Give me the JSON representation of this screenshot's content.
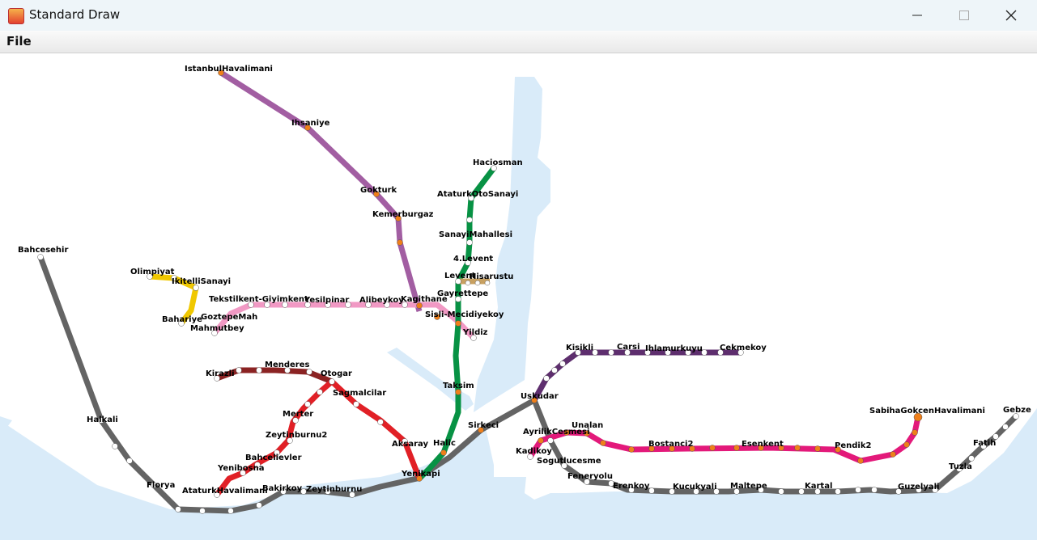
{
  "window": {
    "title": "Standard Draw",
    "minimize_icon": "minimize-icon",
    "maximize_icon": "maximize-icon",
    "close_icon": "close-icon"
  },
  "menu": {
    "file": "File"
  },
  "colors": {
    "water": "#d9ebf9",
    "land": "#ffffff",
    "marmaray": "#646464",
    "m1": "#8b2323",
    "m1a": "#e12026",
    "m2": "#079244",
    "m3": "#f0c800",
    "m4": "#e3197a",
    "m5": "#5e2e6e",
    "m7": "#f199c4",
    "m11": "#a25ea2",
    "funicular": "#c8a060",
    "station_orange": "#ef7f1a",
    "station_white": "#ffffff"
  },
  "stations": {
    "istanbul_havalimani": "IstanbulHavalimani",
    "ihsaniye": "Ihsaniye",
    "gokturk": "Gokturk",
    "kemerburgaz": "Kemerburgaz",
    "haciosman": "Haciosman",
    "ataturk_oto_sanayi": "AtaturkOtoSanayi",
    "sanayi_mahallesi": "SanayiMahallesi",
    "levent4": "4.Levent",
    "levent": "Levent",
    "hisarustu": "Hisarustu",
    "gayrettepe": "Gayrettepe",
    "kagithane": "Kagithane",
    "sisli_mecidiyekoy": "Sisli-Mecidiyekoy",
    "yildiz": "Yildiz",
    "bahcesehir": "Bahcesehir",
    "olimpiyat": "Olimpiyat",
    "ikitelli_sanayi": "IkitelliSanayi",
    "tekstilkent": "Tekstilkent-Giyimkent",
    "yesilpinar": "Yesilpinar",
    "alibeykoy": "Alibeykoy",
    "goztepe_mah": "GoztepeMah",
    "bahariye": "Bahariye",
    "mahmutbey": "Mahmutbey",
    "kirazli": "Kirazli",
    "menderes": "Menderes",
    "otogar": "Otogar",
    "sagmalcilar": "Sagmalcilar",
    "merter": "Merter",
    "zeytinburnu2": "Zeytinburnu2",
    "bahcelievler": "Bahcelievler",
    "yenibosna": "Yenibosna",
    "ataturk_havalimani": "AtaturkHavalimani",
    "taksim": "Taksim",
    "aksaray": "Aksaray",
    "halic": "Halic",
    "yenikapi": "Yenikapi",
    "sirkeci": "Sirkeci",
    "halkali": "Halkali",
    "florya": "Florya",
    "bakirkoy": "Bakirkoy",
    "zeytinburnu": "Zeytinburnu",
    "kisikli": "Kisikli",
    "carsi": "Carsi",
    "ihlamurkuyu": "Ihlamurkuyu",
    "cekmekoy": "Cekmekoy",
    "uskudar": "Uskudar",
    "ayrilik_cesmesi": "AyrilikCesmesi",
    "unalan": "Unalan",
    "kadikoy": "Kadikoy",
    "sogutlucesme": "Sogutlucesme",
    "bostanci2": "Bostanci2",
    "esenkent": "Esenkent",
    "pendik2": "Pendik2",
    "sabiha_gokcen": "SabihaGokcenHavalimani",
    "gebze": "Gebze",
    "fatih": "Fatih",
    "tuzla": "Tuzla",
    "feneryolu": "Feneryolu",
    "erenkoy": "Erenkoy",
    "kucukyali": "Kucukyali",
    "maltepe": "Maltepe",
    "kartal": "Kartal",
    "guzelyali": "Guzelyali"
  }
}
